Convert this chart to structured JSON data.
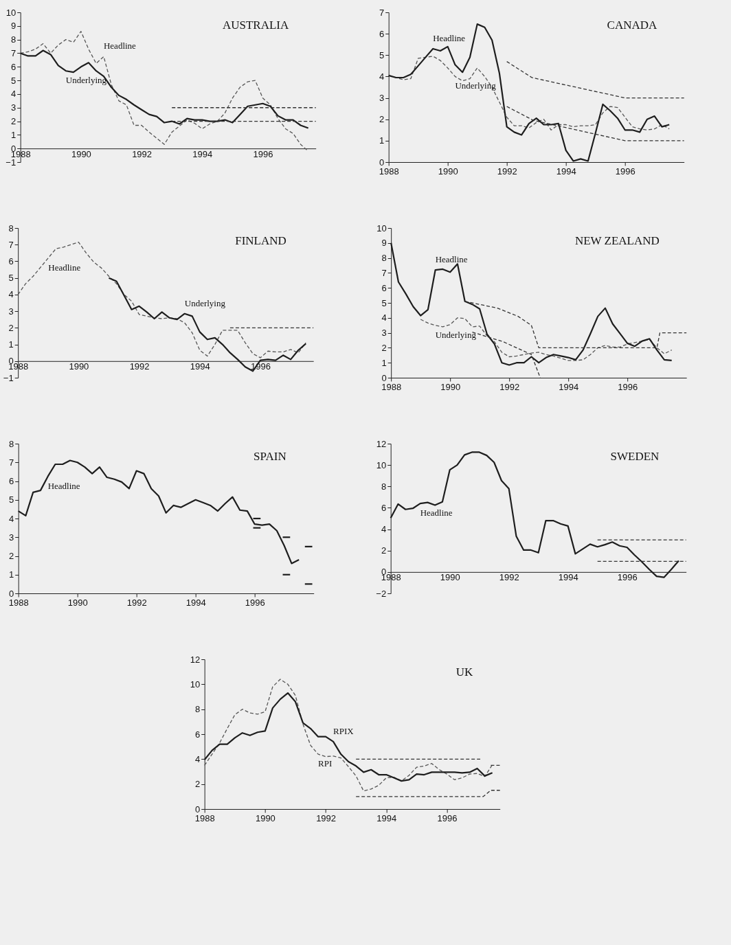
{
  "chart_data": [
    {
      "type": "line",
      "title": "AUSTRALIA",
      "xlim": [
        1988,
        1997.75
      ],
      "xticks": [
        1988,
        1990,
        1992,
        1994,
        1996
      ],
      "ylim": [
        -1,
        10
      ],
      "yticks": [
        -1,
        0,
        1,
        2,
        3,
        4,
        5,
        6,
        7,
        8,
        9,
        10
      ],
      "x": [
        1988,
        1988.25,
        1988.5,
        1988.75,
        1989,
        1989.25,
        1989.5,
        1989.75,
        1990,
        1990.25,
        1990.5,
        1990.75,
        1991,
        1991.25,
        1991.5,
        1991.75,
        1992,
        1992.25,
        1992.5,
        1992.75,
        1993,
        1993.25,
        1993.5,
        1993.75,
        1994,
        1994.25,
        1994.5,
        1994.75,
        1995,
        1995.25,
        1995.5,
        1995.75,
        1996,
        1996.25,
        1996.5,
        1996.75,
        1997,
        1997.25,
        1997.5
      ],
      "series": [
        {
          "color": "#555555",
          "line_style": "dashed",
          "values": [
            7.0,
            7.1,
            7.3,
            7.7,
            7.0,
            7.6,
            8.0,
            7.8,
            8.6,
            7.3,
            6.25,
            6.75,
            4.7,
            3.5,
            3.2,
            1.7,
            1.7,
            1.2,
            0.75,
            0.3,
            1.2,
            1.65,
            2.1,
            1.85,
            1.45,
            1.8,
            2.0,
            2.6,
            3.7,
            4.5,
            4.9,
            5.0,
            3.7,
            3.2,
            2.2,
            1.45,
            1.1,
            0.3,
            -0.2
          ]
        },
        {
          "color": "#1e1e1e",
          "line_style": "solid",
          "values": [
            7.0,
            6.8,
            6.8,
            7.2,
            6.9,
            6.1,
            5.7,
            5.6,
            6.0,
            6.3,
            5.7,
            5.3,
            4.5,
            3.9,
            3.6,
            3.2,
            2.85,
            2.5,
            2.35,
            1.9,
            2.0,
            1.8,
            2.2,
            2.1,
            2.1,
            2.0,
            2.0,
            2.1,
            1.9,
            2.5,
            3.1,
            3.2,
            3.3,
            3.1,
            2.4,
            2.1,
            2.1,
            1.7,
            1.5
          ]
        },
        {
          "color": "#333333",
          "line_style": "dashed",
          "x": [
            1993,
            1997.75
          ],
          "values": [
            3,
            3
          ]
        },
        {
          "color": "#333333",
          "line_style": "dashed",
          "x": [
            1993,
            1997.75
          ],
          "values": [
            2,
            2
          ]
        }
      ],
      "annotations": [
        {
          "text": "Headline",
          "x": 1990.75,
          "y": 6.75
        },
        {
          "text": "Underlying",
          "x": 1989.5,
          "y": 5.7
        }
      ]
    },
    {
      "type": "line",
      "title": "CANADA",
      "xlim": [
        1988,
        1998
      ],
      "xticks": [
        1988,
        1990,
        1992,
        1994,
        1996
      ],
      "ylim": [
        0,
        7
      ],
      "yticks": [
        0,
        1,
        2,
        3,
        4,
        5,
        6,
        7
      ],
      "x": [
        1988,
        1988.25,
        1988.5,
        1988.75,
        1989,
        1989.25,
        1989.5,
        1989.75,
        1990,
        1990.25,
        1990.5,
        1990.75,
        1991,
        1991.25,
        1991.5,
        1991.75,
        1992,
        1992.25,
        1992.5,
        1992.75,
        1993,
        1993.25,
        1993.5,
        1993.75,
        1994,
        1994.25,
        1994.5,
        1994.75,
        1995,
        1995.25,
        1995.5,
        1995.75,
        1996,
        1996.25,
        1996.5,
        1996.75,
        1997,
        1997.25,
        1997.5
      ],
      "series": [
        {
          "color": "#555555",
          "line_style": "dashed",
          "values": [
            4.05,
            3.95,
            3.85,
            3.9,
            4.85,
            4.9,
            4.95,
            4.75,
            4.4,
            4.0,
            3.8,
            3.9,
            4.4,
            4.0,
            3.5,
            2.8,
            2.1,
            1.7,
            1.7,
            1.6,
            1.85,
            2.0,
            1.5,
            1.75,
            1.75,
            1.65,
            1.7,
            1.7,
            1.75,
            2.3,
            2.6,
            2.55,
            2.1,
            1.65,
            1.55,
            1.5,
            1.55,
            1.75,
            1.55
          ]
        },
        {
          "color": "#1e1e1e",
          "line_style": "solid",
          "values": [
            4.05,
            3.95,
            3.95,
            4.1,
            4.5,
            4.9,
            5.3,
            5.2,
            5.4,
            4.55,
            4.2,
            4.9,
            6.45,
            6.3,
            5.7,
            4.15,
            1.65,
            1.4,
            1.27,
            1.8,
            2.05,
            1.75,
            1.75,
            1.8,
            0.55,
            0.05,
            0.15,
            0.05,
            1.35,
            2.7,
            2.4,
            2.05,
            1.5,
            1.5,
            1.4,
            2.0,
            2.15,
            1.65,
            1.75
          ]
        },
        {
          "color": "#333333",
          "line_style": "dashed",
          "x": [
            1992,
            1992.85,
            1996,
            1998
          ],
          "values": [
            4.7,
            3.95,
            3.0,
            3.0
          ]
        },
        {
          "color": "#333333",
          "line_style": "dashed",
          "x": [
            1992,
            1992.9,
            1996,
            1998
          ],
          "values": [
            2.6,
            1.95,
            1.0,
            1.0
          ]
        }
      ],
      "annotations": [
        {
          "text": "Headline",
          "x": 1989.5,
          "y": 5.3
        },
        {
          "text": "Underlying",
          "x": 1990.25,
          "y": 4.0
        }
      ]
    },
    {
      "type": "line",
      "title": "FINLAND",
      "xlim": [
        1988,
        1997.75
      ],
      "xticks": [
        1988,
        1990,
        1992,
        1994,
        1996
      ],
      "ylim": [
        -1,
        8
      ],
      "yticks": [
        -1,
        0,
        1,
        2,
        3,
        4,
        5,
        6,
        7,
        8
      ],
      "x": [
        1988,
        1988.25,
        1988.5,
        1988.75,
        1989,
        1989.25,
        1989.5,
        1989.75,
        1990,
        1990.25,
        1990.5,
        1990.75,
        1991,
        1991.25,
        1991.5,
        1991.75,
        1992,
        1992.25,
        1992.5,
        1992.75,
        1993,
        1993.25,
        1993.5,
        1993.75,
        1994,
        1994.25,
        1994.5,
        1994.75,
        1995,
        1995.25,
        1995.5,
        1995.75,
        1996,
        1996.25,
        1996.5,
        1996.75,
        1997,
        1997.25,
        1997.5
      ],
      "series": [
        {
          "color": "#555555",
          "line_style": "dashed",
          "values": [
            4.0,
            4.65,
            5.1,
            5.65,
            6.2,
            6.75,
            6.85,
            7.0,
            7.15,
            6.5,
            5.95,
            5.6,
            5.1,
            4.65,
            4.0,
            3.6,
            2.8,
            2.7,
            2.6,
            2.55,
            2.6,
            2.55,
            2.3,
            1.7,
            0.65,
            0.3,
            1.0,
            1.85,
            1.85,
            1.85,
            1.1,
            0.45,
            0.2,
            0.6,
            0.55,
            0.55,
            0.7,
            0.5,
            1.1
          ]
        },
        {
          "color": "#1e1e1e",
          "line_style": "solid",
          "x": [
            1991,
            1991.25,
            1991.5,
            1991.75,
            1992,
            1992.25,
            1992.5,
            1992.75,
            1993,
            1993.25,
            1993.5,
            1993.75,
            1994,
            1994.25,
            1994.5,
            1994.75,
            1995,
            1995.25,
            1995.5,
            1995.75,
            1996,
            1996.25,
            1996.5,
            1996.75,
            1997,
            1997.25,
            1997.5
          ],
          "values": [
            5.0,
            4.8,
            3.95,
            3.1,
            3.3,
            2.95,
            2.55,
            2.95,
            2.6,
            2.5,
            2.85,
            2.7,
            1.75,
            1.3,
            1.4,
            1.0,
            0.5,
            0.1,
            -0.35,
            -0.6,
            0.05,
            0.1,
            0.05,
            0.35,
            0.1,
            0.65,
            1.05
          ]
        },
        {
          "color": "#333333",
          "line_style": "dashed",
          "x": [
            1995,
            1997.75
          ],
          "values": [
            2,
            2
          ]
        }
      ],
      "annotations": [
        {
          "text": "Headline",
          "x": 1989,
          "y": 6.2
        },
        {
          "text": "Underlying",
          "x": 1993.5,
          "y": 2.85
        }
      ]
    },
    {
      "type": "line",
      "title": "NEW ZEALAND",
      "xlim": [
        1988,
        1998
      ],
      "xticks": [
        1988,
        1990,
        1992,
        1994,
        1996
      ],
      "ylim": [
        0,
        10
      ],
      "yticks": [
        0,
        1,
        2,
        3,
        4,
        5,
        6,
        7,
        8,
        9,
        10
      ],
      "x": [
        1988,
        1988.25,
        1988.5,
        1988.75,
        1989,
        1989.25,
        1989.5,
        1989.75,
        1990,
        1990.25,
        1990.5,
        1990.75,
        1991,
        1991.25,
        1991.5,
        1991.75,
        1992,
        1992.25,
        1992.5,
        1992.75,
        1993,
        1993.25,
        1993.5,
        1993.75,
        1994,
        1994.25,
        1994.5,
        1994.75,
        1995,
        1995.25,
        1995.5,
        1995.75,
        1996,
        1996.25,
        1996.5,
        1996.75,
        1997,
        1997.25,
        1997.5
      ],
      "series": [
        {
          "color": "#555555",
          "line_style": "dashed",
          "x": [
            1989,
            1989.25,
            1989.5,
            1989.75,
            1990,
            1990.25,
            1990.5,
            1990.75,
            1991,
            1991.25,
            1991.5,
            1991.75,
            1992,
            1992.25,
            1992.5,
            1992.75,
            1993,
            1993.25,
            1993.5,
            1993.75,
            1994,
            1994.25,
            1994.5,
            1994.75,
            1995,
            1995.25,
            1995.5,
            1995.75,
            1996,
            1996.25,
            1996.5,
            1996.75,
            1997,
            1997.25,
            1997.5
          ],
          "values": [
            3.9,
            3.65,
            3.5,
            3.4,
            3.55,
            4.0,
            3.95,
            3.4,
            3.45,
            2.8,
            2.4,
            1.7,
            1.4,
            1.45,
            1.55,
            1.65,
            1.7,
            1.55,
            1.45,
            1.3,
            1.15,
            1.15,
            1.2,
            1.55,
            2.0,
            2.15,
            2.05,
            2.05,
            2.25,
            2.35,
            2.45,
            2.55,
            2.0,
            1.6,
            1.85
          ]
        },
        {
          "color": "#1e1e1e",
          "line_style": "solid",
          "values": [
            9.0,
            6.4,
            5.6,
            4.75,
            4.15,
            4.55,
            7.2,
            7.25,
            7.05,
            7.6,
            5.1,
            4.9,
            4.6,
            2.9,
            2.25,
            1.0,
            0.85,
            1.0,
            1.0,
            1.4,
            1.0,
            1.35,
            1.55,
            1.45,
            1.35,
            1.2,
            1.85,
            2.95,
            4.1,
            4.65,
            3.6,
            2.95,
            2.3,
            2.1,
            2.45,
            2.6,
            1.85,
            1.2,
            1.15
          ]
        },
        {
          "color": "#333333",
          "line_style": "dashed",
          "x": [
            1990.5,
            1991.6,
            1992.3,
            1992.75,
            1993.0,
            1997.0,
            1997.1,
            1998
          ],
          "values": [
            5.1,
            4.65,
            4.1,
            3.5,
            2.0,
            2.0,
            3.0,
            3.0
          ]
        },
        {
          "color": "#333333",
          "line_style": "dashed",
          "x": [
            1990.75,
            1991.8,
            1992.75,
            1993.05
          ],
          "values": [
            3.05,
            2.4,
            1.55,
            0
          ]
        }
      ],
      "annotations": [
        {
          "text": "Headline",
          "x": 1989.5,
          "y": 7.2
        },
        {
          "text": "Underlying",
          "x": 1989.5,
          "y": 3.5
        }
      ]
    },
    {
      "type": "line",
      "title": "SPAIN",
      "xlim": [
        1988,
        1998
      ],
      "xticks": [
        1988,
        1990,
        1992,
        1994,
        1996
      ],
      "ylim": [
        0,
        8
      ],
      "yticks": [
        0,
        1,
        2,
        3,
        4,
        5,
        6,
        7,
        8
      ],
      "x": [
        1988,
        1988.25,
        1988.5,
        1988.75,
        1989,
        1989.25,
        1989.5,
        1989.75,
        1990,
        1990.25,
        1990.5,
        1990.75,
        1991,
        1991.25,
        1991.5,
        1991.75,
        1992,
        1992.25,
        1992.5,
        1992.75,
        1993,
        1993.25,
        1993.5,
        1993.75,
        1994,
        1994.25,
        1994.5,
        1994.75,
        1995,
        1995.25,
        1995.5,
        1995.75,
        1996,
        1996.25,
        1996.5,
        1996.75,
        1997,
        1997.25,
        1997.5
      ],
      "series": [
        {
          "color": "#1e1e1e",
          "line_style": "solid",
          "values": [
            4.4,
            4.15,
            5.4,
            5.5,
            6.25,
            6.9,
            6.9,
            7.1,
            7.0,
            6.75,
            6.4,
            6.75,
            6.2,
            6.1,
            5.95,
            5.6,
            6.55,
            6.4,
            5.6,
            5.2,
            4.3,
            4.7,
            4.6,
            4.8,
            5.0,
            4.85,
            4.7,
            4.4,
            4.8,
            5.15,
            4.45,
            4.4,
            3.7,
            3.65,
            3.7,
            3.35,
            2.55,
            1.6,
            1.8
          ]
        },
        {
          "color": "#1e1e1e",
          "line_style": "solid",
          "x": [
            1995.95,
            1996.2
          ],
          "values": [
            4,
            4
          ]
        },
        {
          "color": "#1e1e1e",
          "line_style": "solid",
          "x": [
            1995.95,
            1996.2
          ],
          "values": [
            3.5,
            3.5
          ]
        },
        {
          "color": "#1e1e1e",
          "line_style": "solid",
          "x": [
            1996.95,
            1997.2
          ],
          "values": [
            3,
            3
          ]
        },
        {
          "color": "#1e1e1e",
          "line_style": "solid",
          "x": [
            1996.95,
            1997.2
          ],
          "values": [
            1,
            1
          ]
        },
        {
          "color": "#1e1e1e",
          "line_style": "solid",
          "x": [
            1997.7,
            1997.95
          ],
          "values": [
            2.5,
            2.5
          ]
        },
        {
          "color": "#1e1e1e",
          "line_style": "solid",
          "x": [
            1997.7,
            1997.95
          ],
          "values": [
            0.5,
            0.5
          ]
        }
      ],
      "annotations": [
        {
          "text": "Headline",
          "x": 1989,
          "y": 6.25
        }
      ]
    },
    {
      "type": "line",
      "title": "SWEDEN",
      "xlim": [
        1988,
        1998
      ],
      "xticks": [
        1988,
        1990,
        1992,
        1994,
        1996
      ],
      "ylim": [
        -2,
        12
      ],
      "yticks": [
        -2,
        0,
        2,
        4,
        6,
        8,
        10,
        12
      ],
      "x": [
        1988,
        1988.25,
        1988.5,
        1988.75,
        1989,
        1989.25,
        1989.5,
        1989.75,
        1990,
        1990.25,
        1990.5,
        1990.75,
        1991,
        1991.25,
        1991.5,
        1991.75,
        1992,
        1992.25,
        1992.5,
        1992.75,
        1993,
        1993.25,
        1993.5,
        1993.75,
        1994,
        1994.25,
        1994.5,
        1994.75,
        1995,
        1995.25,
        1995.5,
        1995.75,
        1996,
        1996.25,
        1996.5,
        1996.75,
        1997,
        1997.25,
        1997.5,
        1997.75
      ],
      "series": [
        {
          "color": "#1e1e1e",
          "line_style": "solid",
          "values": [
            5.05,
            6.35,
            5.85,
            5.95,
            6.4,
            6.5,
            6.25,
            6.55,
            9.55,
            10.0,
            10.95,
            11.2,
            11.2,
            10.9,
            10.25,
            8.55,
            7.8,
            3.35,
            2.05,
            2.05,
            1.8,
            4.8,
            4.8,
            4.5,
            4.3,
            1.7,
            2.15,
            2.6,
            2.35,
            2.55,
            2.8,
            2.45,
            2.3,
            1.6,
            0.95,
            0.25,
            -0.4,
            -0.5,
            0.25,
            1.05
          ]
        },
        {
          "color": "#333333",
          "line_style": "dashed",
          "x": [
            1995,
            1998
          ],
          "values": [
            3,
            3
          ]
        },
        {
          "color": "#333333",
          "line_style": "dashed",
          "x": [
            1995,
            1998
          ],
          "values": [
            1,
            1
          ]
        }
      ],
      "annotations": [
        {
          "text": "Headline",
          "x": 1989,
          "y": 6.4
        }
      ]
    },
    {
      "type": "line",
      "title": "UK",
      "xlim": [
        1988,
        1997.75
      ],
      "xticks": [
        1988,
        1990,
        1992,
        1994,
        1996
      ],
      "ylim": [
        0,
        12
      ],
      "yticks": [
        0,
        2,
        4,
        6,
        8,
        10,
        12
      ],
      "x": [
        1988,
        1988.25,
        1988.5,
        1988.75,
        1989,
        1989.25,
        1989.5,
        1989.75,
        1990,
        1990.25,
        1990.5,
        1990.75,
        1991,
        1991.25,
        1991.5,
        1991.75,
        1992,
        1992.25,
        1992.5,
        1992.75,
        1993,
        1993.25,
        1993.5,
        1993.75,
        1994,
        1994.25,
        1994.5,
        1994.75,
        1995,
        1995.25,
        1995.5,
        1995.75,
        1996,
        1996.25,
        1996.5,
        1996.75,
        1997,
        1997.25,
        1997.5
      ],
      "series": [
        {
          "color": "#555555",
          "line_style": "dashed",
          "values": [
            3.5,
            4.4,
            5.3,
            6.45,
            7.55,
            8.0,
            7.7,
            7.6,
            7.8,
            9.8,
            10.4,
            10.0,
            9.1,
            6.8,
            5.1,
            4.4,
            4.2,
            4.25,
            4.1,
            3.4,
            2.65,
            1.45,
            1.6,
            1.9,
            2.5,
            2.55,
            2.25,
            2.7,
            3.35,
            3.45,
            3.65,
            3.15,
            2.8,
            2.35,
            2.5,
            2.8,
            2.85,
            2.6,
            3.55
          ]
        },
        {
          "color": "#1e1e1e",
          "line_style": "solid",
          "values": [
            3.95,
            4.7,
            5.2,
            5.2,
            5.7,
            6.1,
            5.9,
            6.15,
            6.25,
            8.1,
            8.8,
            9.3,
            8.6,
            6.9,
            6.45,
            5.8,
            5.8,
            5.4,
            4.4,
            3.8,
            3.45,
            2.95,
            3.15,
            2.75,
            2.75,
            2.5,
            2.25,
            2.35,
            2.8,
            2.75,
            2.95,
            2.95,
            2.95,
            2.95,
            2.9,
            2.95,
            3.25,
            2.65,
            2.9
          ]
        },
        {
          "color": "#333333",
          "line_style": "dashed",
          "x": [
            1993,
            1997.1
          ],
          "values": [
            4,
            4
          ]
        },
        {
          "color": "#333333",
          "line_style": "dashed",
          "x": [
            1997.45,
            1997.75
          ],
          "values": [
            3.5,
            3.5
          ]
        },
        {
          "color": "#333333",
          "line_style": "dashed",
          "x": [
            1993,
            1997.2,
            1997.45,
            1997.75
          ],
          "values": [
            1,
            1,
            1.5,
            1.5
          ]
        }
      ],
      "annotations": [
        {
          "text": "RPIX",
          "x": 1992.25,
          "y": 5.4
        },
        {
          "text": "RPI",
          "x": 1991.75,
          "y": 4.4
        }
      ]
    }
  ]
}
